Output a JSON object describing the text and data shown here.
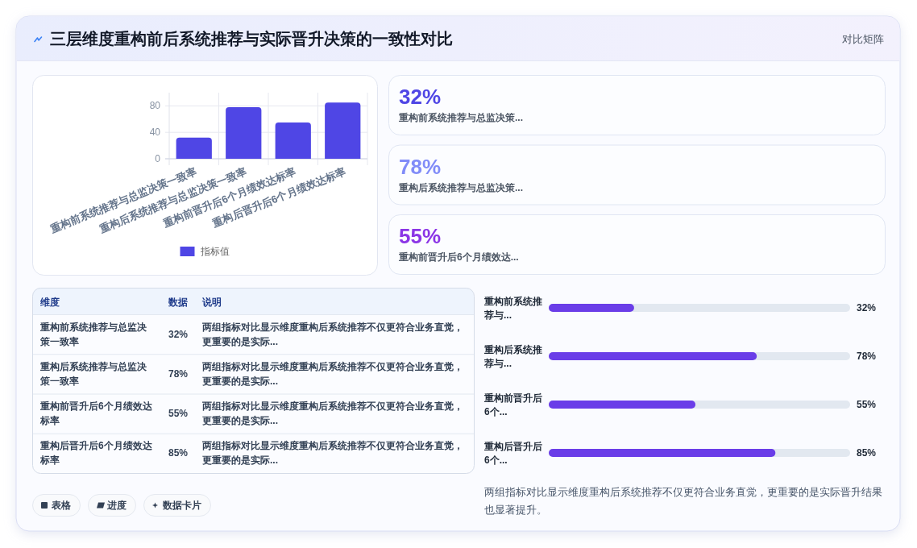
{
  "chart_data": [
    {
      "type": "other",
      "title": "三层维度重构前后系统推荐与实际晋升决策的一致性对比",
      "subtitle": "对比矩阵"
    },
    {
      "type": "bar",
      "categories": [
        "重构前系统推荐与总监决策一致率",
        "重构后系统推荐与总监决策一致率",
        "重构前晋升后6个月绩效达标率",
        "重构后晋升后6个月绩效达标率"
      ],
      "series": [
        {
          "name": "指标值",
          "color": "#4f46e5",
          "values": [
            32,
            78,
            55,
            85
          ]
        }
      ],
      "ylim": [
        0,
        100
      ],
      "yticks": [
        0,
        40,
        80
      ],
      "grid": true,
      "legend": "bottom"
    },
    {
      "type": "other",
      "annotations": [
        "32%",
        "重构前系统推荐与总监决策...",
        "78%",
        "重构后系统推荐与总监决策...",
        "55%",
        "重构前晋升后6个月绩效达..."
      ],
      "colors": [
        "#4f46e5",
        "#818cf8",
        "#8b35e6"
      ]
    },
    {
      "type": "other",
      "annotations": [
        "维度",
        "数据",
        "说明",
        "重构前系统推荐与总监决策一致率",
        "32%",
        "两组指标对比显示维度重构后系统推荐不仅更符合业务直觉，更重要的是实际...",
        "重构后系统推荐与总监决策一致率",
        "78%",
        "两组指标对比显示维度重构后系统推荐不仅更符合业务直觉，更重要的是实际...",
        "重构前晋升后6个月绩效达标率",
        "55%",
        "两组指标对比显示维度重构后系统推荐不仅更符合业务直觉，更重要的是实际...",
        "重构后晋升后6个月绩效达标率",
        "85%",
        "两组指标对比显示维度重构后系统推荐不仅更符合业务直觉，更重要的是实际..."
      ]
    },
    {
      "type": "bar",
      "orientation": "horizontal",
      "categories": [
        "重构前系统推荐与...",
        "重构后系统推荐与...",
        "重构前晋升后6个...",
        "重构后晋升后6个..."
      ],
      "series": [
        {
          "color": "#6a3de8",
          "values": [
            32,
            78,
            55,
            85
          ],
          "value_labels": [
            "32%",
            "78%",
            "55%",
            "85%"
          ]
        }
      ],
      "xlim": [
        0,
        113
      ],
      "annotations": [
        "两组指标对比显示维度重构后系统推荐不仅更符合业务直觉，更重要的是实际晋升结果也显著提升。"
      ]
    },
    {
      "type": "other",
      "annotations": [
        "表格",
        "进度",
        "数据卡片"
      ]
    }
  ]
}
